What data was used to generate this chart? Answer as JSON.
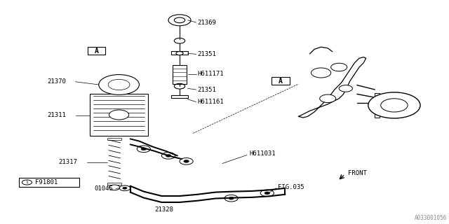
{
  "bg_color": "#ffffff",
  "line_color": "#000000",
  "text_color": "#000000",
  "diagram_id": "A033001056",
  "label_21369": "21369",
  "label_21351": "21351",
  "label_H611171": "H611171",
  "label_H611161": "H611161",
  "label_21370": "21370",
  "label_21311": "21311",
  "label_21317": "21317",
  "label_H611031": "H611031",
  "label_FIG035": "FIG.035",
  "label_0104S": "0104S",
  "label_21328": "21328",
  "label_F91801": "F91801",
  "label_FRONT": "FRONT",
  "label_A": "A",
  "diagram_id_color": "#888888"
}
